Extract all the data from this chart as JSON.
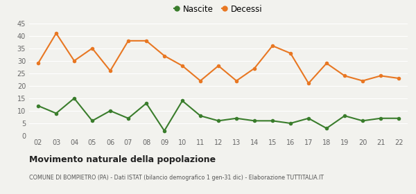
{
  "years": [
    "02",
    "03",
    "04",
    "05",
    "06",
    "07",
    "08",
    "09",
    "10",
    "11",
    "12",
    "13",
    "14",
    "15",
    "16",
    "17",
    "18",
    "19",
    "20",
    "21",
    "22"
  ],
  "nascite": [
    12,
    9,
    15,
    6,
    10,
    7,
    13,
    2,
    14,
    8,
    6,
    7,
    6,
    6,
    5,
    7,
    3,
    8,
    6,
    7,
    7
  ],
  "decessi": [
    29,
    41,
    30,
    35,
    26,
    38,
    38,
    32,
    28,
    22,
    28,
    22,
    27,
    36,
    33,
    21,
    29,
    24,
    22,
    24,
    23
  ],
  "nascite_color": "#3a7d2c",
  "decessi_color": "#e87722",
  "background_color": "#f2f2ee",
  "grid_color": "#ffffff",
  "ylim": [
    0,
    45
  ],
  "yticks": [
    0,
    5,
    10,
    15,
    20,
    25,
    30,
    35,
    40,
    45
  ],
  "title": "Movimento naturale della popolazione",
  "subtitle": "COMUNE DI BOMPIETRO (PA) - Dati ISTAT (bilancio demografico 1 gen-31 dic) - Elaborazione TUTTITALIA.IT",
  "legend_nascite": "Nascite",
  "legend_decessi": "Decessi",
  "marker_size": 4,
  "line_width": 1.5
}
